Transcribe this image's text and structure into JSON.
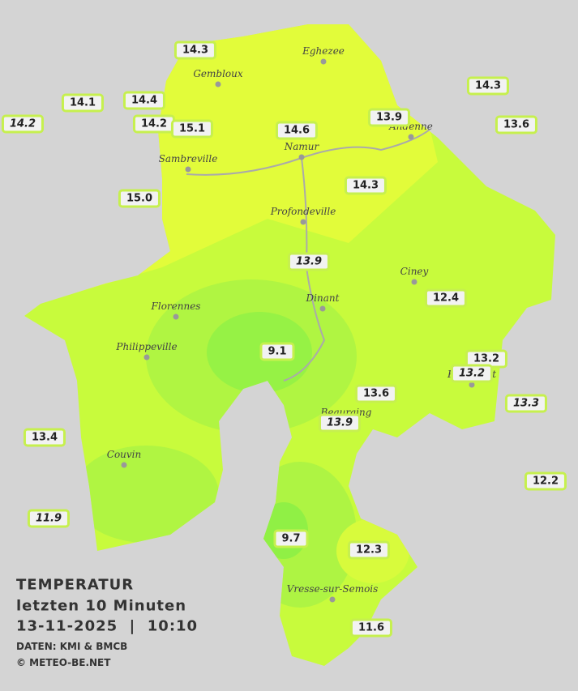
{
  "title": {
    "heading": "TEMPERATUR",
    "period": "letzten 10 Minuten",
    "timestamp": "13-11-2025  |  10:10",
    "source": "DATEN: KMI & BMCB",
    "copyright": "© METEO-BE.NET"
  },
  "cities": [
    "Eghezee",
    "Gembloux",
    "Andenne",
    "Namur",
    "Sambreville",
    "Profondeville",
    "Ciney",
    "Dinant",
    "Florennes",
    "Philippeville",
    "Rochefort",
    "Beauraing",
    "Couvin",
    "Vresse-sur-Semois"
  ],
  "stations": [
    {
      "label": "14.3",
      "italic": false
    },
    {
      "label": "14.1",
      "italic": false
    },
    {
      "label": "14.4",
      "italic": false
    },
    {
      "label": "14.2",
      "italic": true
    },
    {
      "label": "14.2",
      "italic": false
    },
    {
      "label": "15.1",
      "italic": false
    },
    {
      "label": "14.6",
      "italic": false
    },
    {
      "label": "13.9",
      "italic": false
    },
    {
      "label": "14.3",
      "italic": false
    },
    {
      "label": "13.6",
      "italic": false
    },
    {
      "label": "15.0",
      "italic": false
    },
    {
      "label": "14.3",
      "italic": false
    },
    {
      "label": "13.9",
      "italic": true
    },
    {
      "label": "12.4",
      "italic": false
    },
    {
      "label": "9.1",
      "italic": false
    },
    {
      "label": "13.2",
      "italic": false
    },
    {
      "label": "13.2",
      "italic": true
    },
    {
      "label": "13.3",
      "italic": true
    },
    {
      "label": "13.6",
      "italic": false
    },
    {
      "label": "13.9",
      "italic": true
    },
    {
      "label": "13.4",
      "italic": false
    },
    {
      "label": "12.2",
      "italic": false
    },
    {
      "label": "11.9",
      "italic": true
    },
    {
      "label": "9.7",
      "italic": false
    },
    {
      "label": "12.3",
      "italic": false
    },
    {
      "label": "11.6",
      "italic": false
    }
  ]
}
